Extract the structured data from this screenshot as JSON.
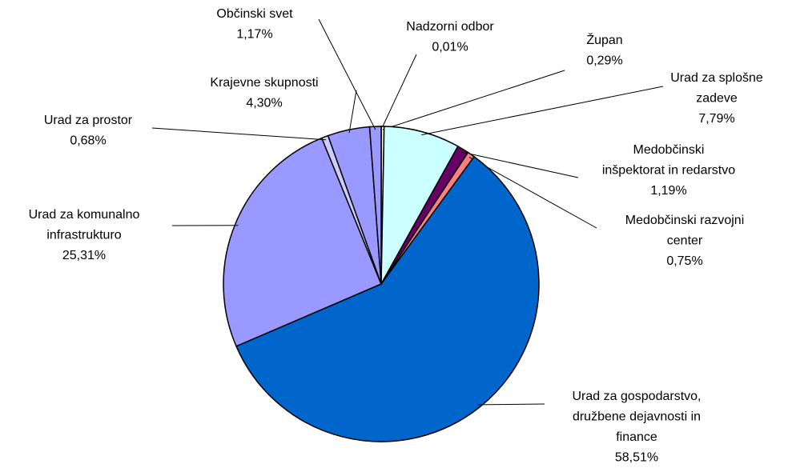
{
  "chart_data": {
    "type": "pie",
    "categories": [
      "Nadzorni odbor",
      "Župan",
      "Urad za splošne\nzadeve",
      "Medobčinski\ninšpektorat  in redarstvo",
      "Medobčinski  razvojni\ncenter",
      "Urad za gospodarstvo,\ndružbene  dejavnosti  in\nfinance",
      "Urad za komunalno\ninfrastrukturo",
      "Urad za prostor",
      "Krajevne  skupnosti",
      "Občinski  svet"
    ],
    "values": [
      0.01,
      0.29,
      7.79,
      1.19,
      0.75,
      58.51,
      25.31,
      0.68,
      4.3,
      1.17
    ],
    "value_labels": [
      "0,01%",
      "0,29%",
      "7,79%",
      "1,19%",
      "0,75%",
      "58,51%",
      "25,31%",
      "0,68%",
      "4,30%",
      "1,17%"
    ],
    "colors": [
      "#993366",
      "#ffffcc",
      "#ccffff",
      "#660066",
      "#ff8080",
      "#0066cc",
      "#9999ff",
      "#ccccff",
      "#9999ff",
      "#9999ff"
    ]
  }
}
